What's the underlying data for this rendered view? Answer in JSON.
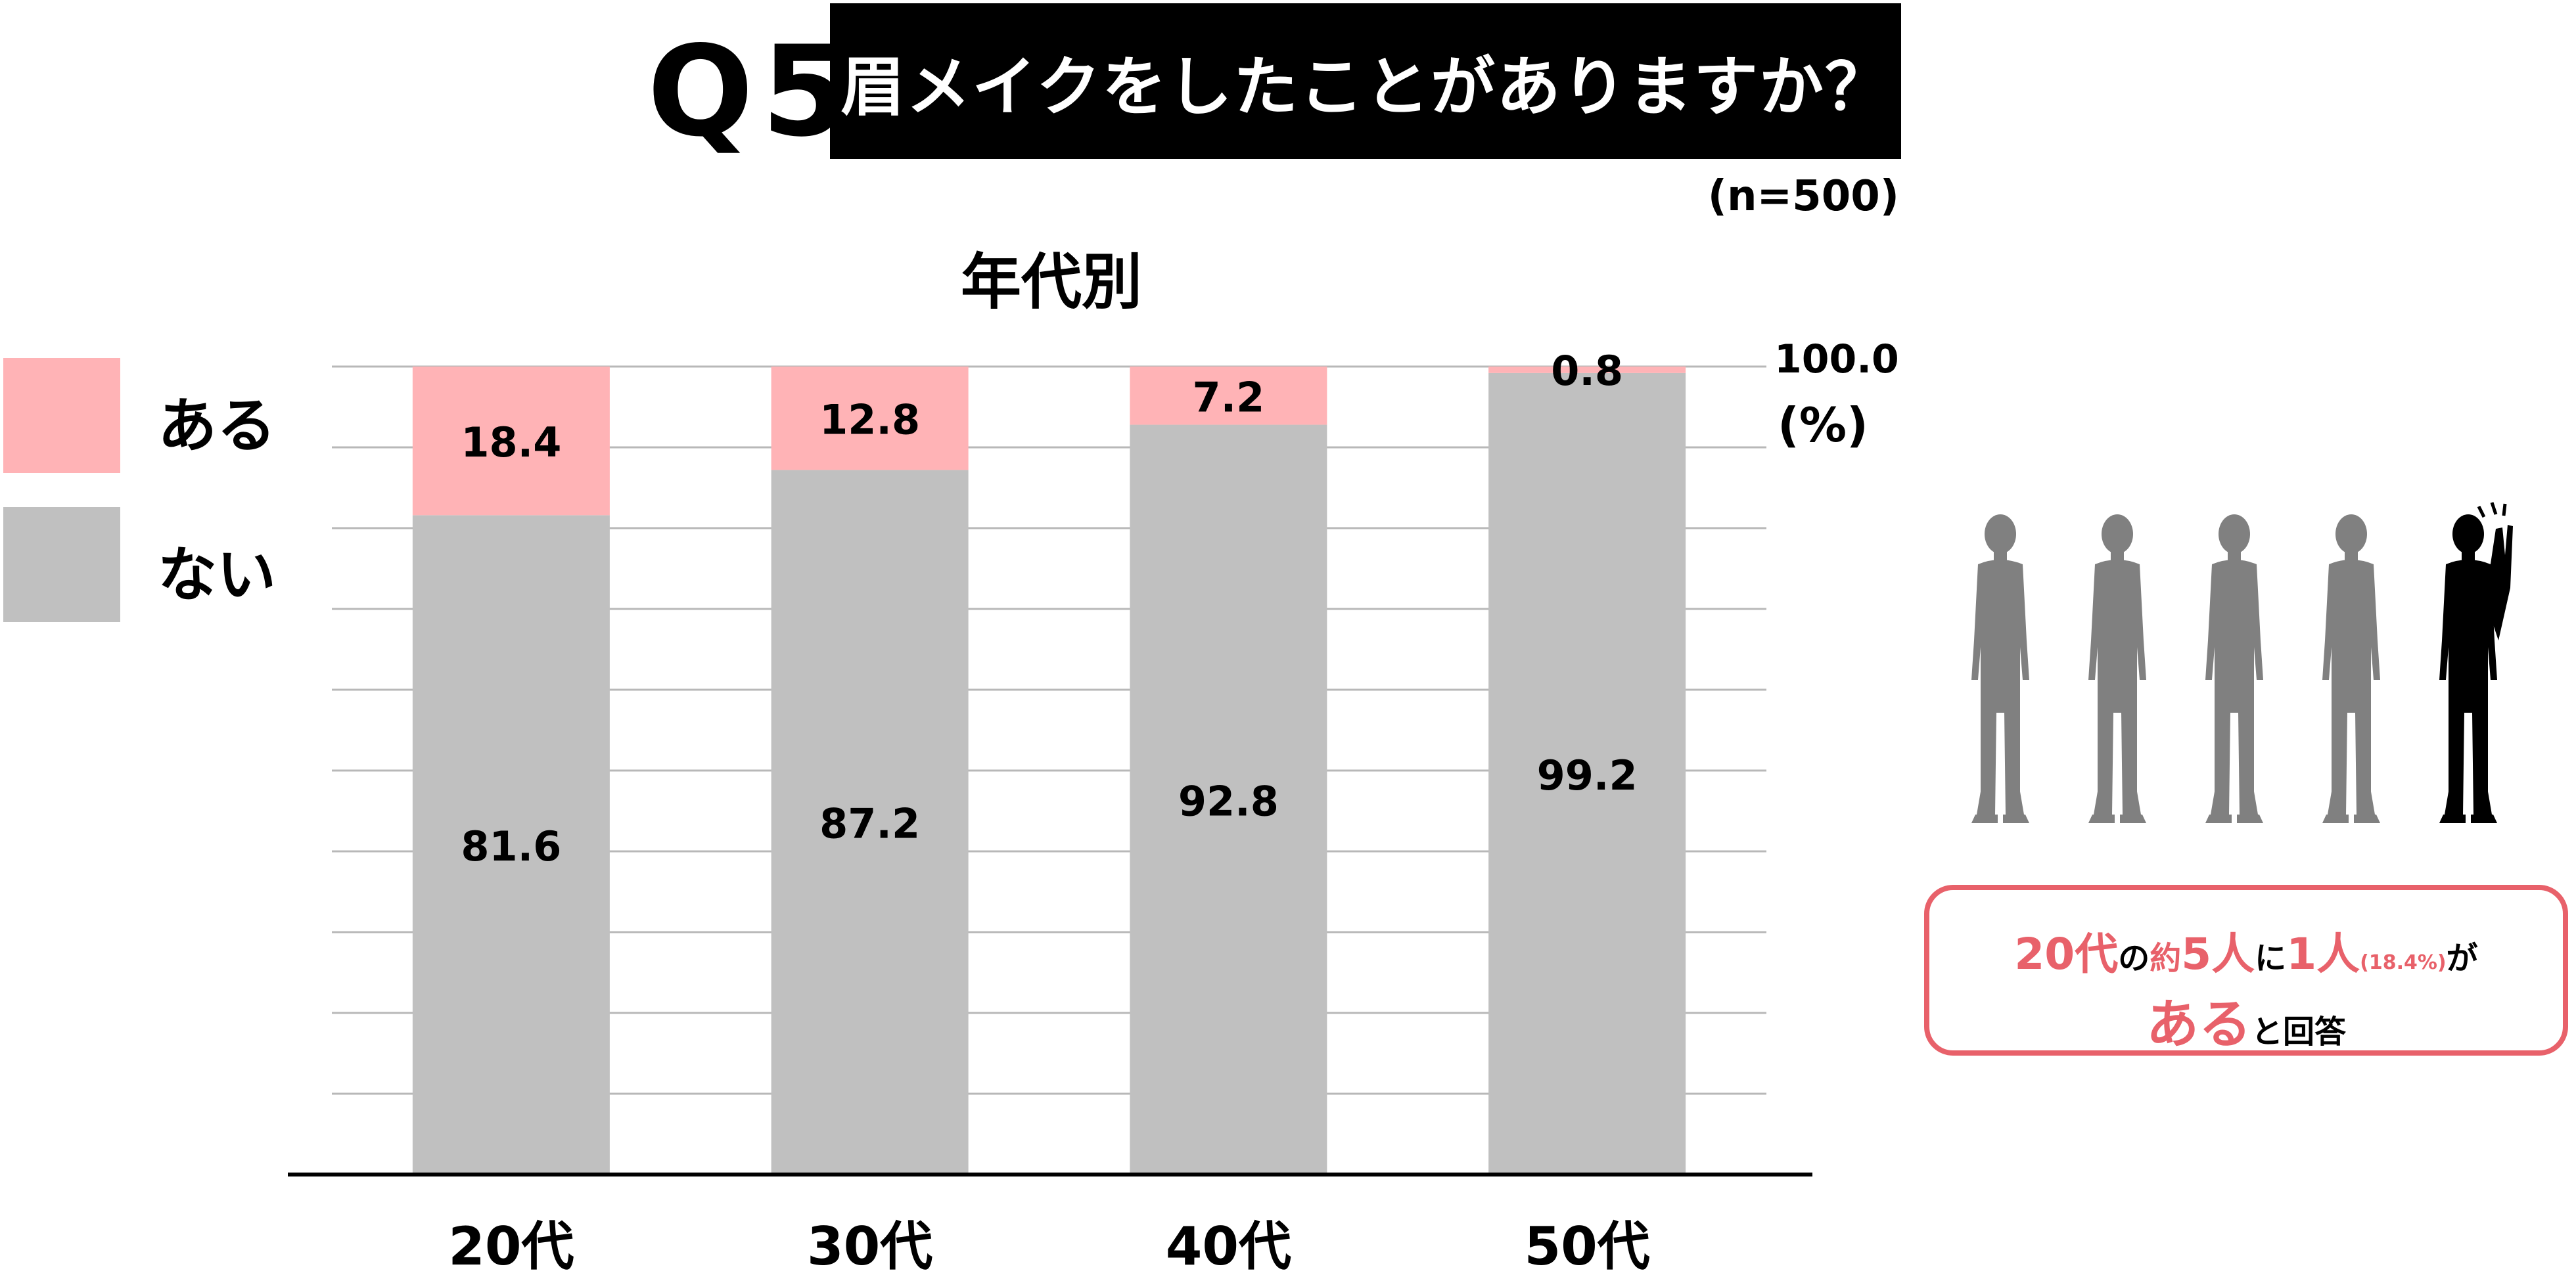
{
  "header": {
    "question_number": "Q5",
    "question": "眉メイクをしたことがありますか？",
    "sample_size": "(n=500)",
    "subtitle": "年代別"
  },
  "legend": [
    {
      "label": "ある",
      "color": "#ffb3b6"
    },
    {
      "label": "ない",
      "color": "#c0c0c0"
    }
  ],
  "axis": {
    "max_label": "100.0",
    "unit_label": "(%)"
  },
  "chart_data": {
    "type": "bar",
    "stacked": true,
    "categories": [
      "20代",
      "30代",
      "40代",
      "50代"
    ],
    "series": [
      {
        "name": "ない",
        "values": [
          81.6,
          87.2,
          92.8,
          99.2
        ],
        "color": "#c0c0c0"
      },
      {
        "name": "ある",
        "values": [
          18.4,
          12.8,
          7.2,
          0.8
        ],
        "color": "#ffb3b6"
      }
    ],
    "ylim": [
      0,
      100
    ],
    "grid": true,
    "legend_position": "left"
  },
  "callout": {
    "age": "20代",
    "particle1": "の",
    "approx": "約",
    "five": "5",
    "person1": "人",
    "ni": "に",
    "one": "1",
    "person2": "人",
    "percent": "(18.4%)",
    "ga": "が",
    "aru": "ある",
    "answered": "と回答"
  },
  "colors": {
    "accent": "#e8616a",
    "person_gray": "#808080",
    "person_highlight": "#000000"
  }
}
